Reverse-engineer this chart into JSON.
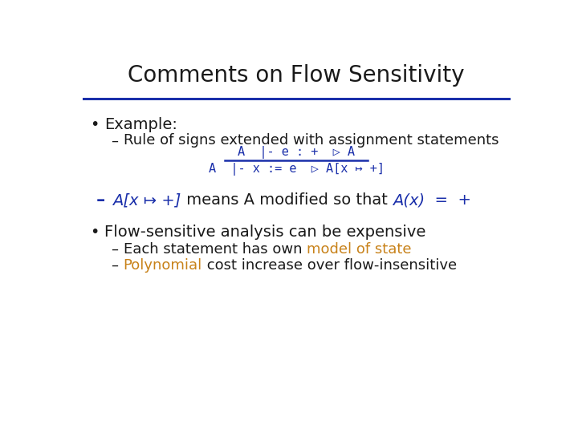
{
  "title": "Comments on Flow Sensitivity",
  "title_fontsize": 20,
  "title_color": "#1a1a1a",
  "line_color": "#1a2faa",
  "bg_color": "#ffffff",
  "blue_color": "#1a2faa",
  "orange_color": "#c8821a",
  "black_color": "#1a1a1a",
  "bullet1": "Example:",
  "sub1": "Rule of signs extended with assignment statements",
  "rule_top": "A  |- e : +  ▷ A",
  "rule_bottom": "A  |- x := e  ▷ A[x ↦ +]",
  "bullet3": "Flow-sensitive analysis can be expensive",
  "sub3a_black1": "Each statement has own ",
  "sub3a_orange": "model of state",
  "sub3b_orange": "Polynomial",
  "sub3b_black": " cost increase over flow-insensitive",
  "body_fontsize": 14,
  "sub_fontsize": 13,
  "rule_fontsize": 11,
  "dash_fontsize": 14
}
